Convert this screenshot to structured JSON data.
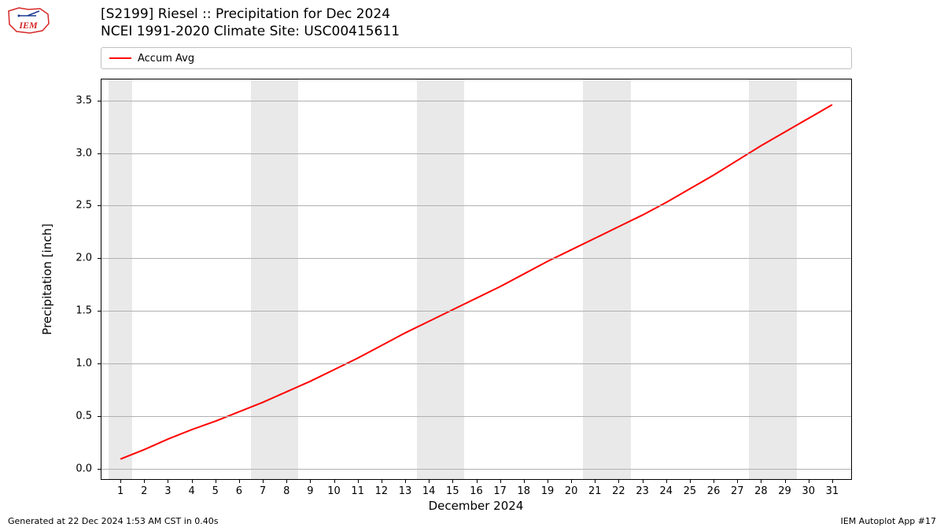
{
  "logo": {
    "text": "IEM",
    "color": "#d62728",
    "stroke": "#1f3a93"
  },
  "title": {
    "line1": "[S2199] Riesel :: Precipitation for Dec 2024",
    "line2": "NCEI 1991-2020 Climate Site: USC00415611"
  },
  "legend": {
    "label": "Accum Avg",
    "color": "#ff0000"
  },
  "chart": {
    "type": "line",
    "background_color": "#ffffff",
    "weekend_band_color": "#e9e9e9",
    "grid_color": "#b0b0b0",
    "border_color": "#000000",
    "line_color": "#ff0000",
    "line_width": 2,
    "xlabel": "December 2024",
    "ylabel": "Precipitation [inch]",
    "label_fontsize": 15,
    "tick_fontsize": 13,
    "x_domain_min": 0.2,
    "x_domain_max": 31.8,
    "y_domain_min": -0.1,
    "y_domain_max": 3.7,
    "xticks": [
      1,
      2,
      3,
      4,
      5,
      6,
      7,
      8,
      9,
      10,
      11,
      12,
      13,
      14,
      15,
      16,
      17,
      18,
      19,
      20,
      21,
      22,
      23,
      24,
      25,
      26,
      27,
      28,
      29,
      30,
      31
    ],
    "yticks": [
      0.0,
      0.5,
      1.0,
      1.5,
      2.0,
      2.5,
      3.0,
      3.5
    ],
    "weekend_bands": [
      [
        1,
        1
      ],
      [
        7,
        8
      ],
      [
        14,
        15
      ],
      [
        21,
        22
      ],
      [
        28,
        29
      ]
    ],
    "series": {
      "x": [
        1,
        2,
        3,
        4,
        5,
        6,
        7,
        8,
        9,
        10,
        11,
        12,
        13,
        14,
        15,
        16,
        17,
        18,
        19,
        20,
        21,
        22,
        23,
        24,
        25,
        26,
        27,
        28,
        29,
        30,
        31
      ],
      "y": [
        0.09,
        0.18,
        0.28,
        0.37,
        0.45,
        0.54,
        0.63,
        0.73,
        0.83,
        0.94,
        1.05,
        1.17,
        1.29,
        1.4,
        1.51,
        1.62,
        1.73,
        1.85,
        1.97,
        2.08,
        2.19,
        2.3,
        2.41,
        2.53,
        2.66,
        2.79,
        2.93,
        3.07,
        3.2,
        3.33,
        3.46
      ]
    }
  },
  "footer": {
    "left": "Generated at 22 Dec 2024 1:53 AM CST in 0.40s",
    "right": "IEM Autoplot App #17"
  }
}
